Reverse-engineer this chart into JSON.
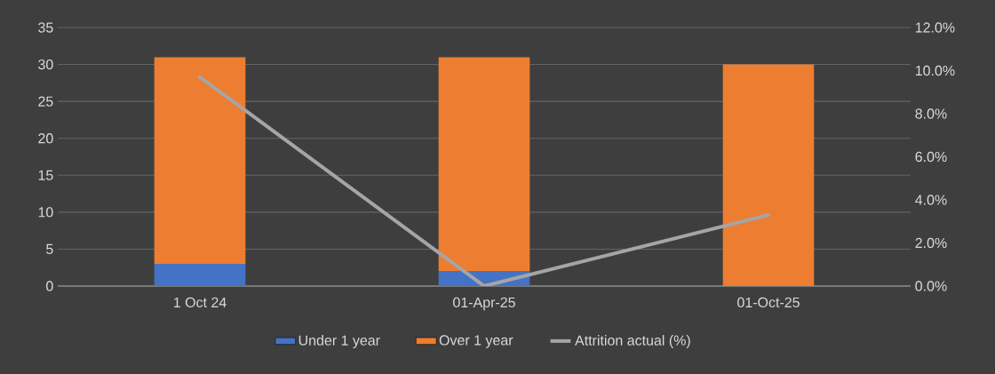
{
  "chart_data": {
    "type": "bar",
    "stacked": true,
    "categories": [
      "1 Oct 24",
      "01-Apr-25",
      "01-Oct-25"
    ],
    "series": [
      {
        "name": "Under 1 year",
        "color": "#4472c4",
        "values": [
          3,
          2,
          0
        ]
      },
      {
        "name": "Over 1 year",
        "color": "#ed7d31",
        "values": [
          28,
          29,
          30
        ]
      },
      {
        "name": "Attrition actual (%)",
        "type": "line",
        "axis": "y2",
        "color": "#a5a5a5",
        "values": [
          9.7,
          0,
          3.3
        ]
      }
    ],
    "ylim": [
      0,
      35
    ],
    "yticks": [
      0,
      5,
      10,
      15,
      20,
      25,
      30,
      35
    ],
    "y2lim": [
      0,
      12
    ],
    "y2ticks": [
      {
        "value": 0,
        "label": "0.0%"
      },
      {
        "value": 2,
        "label": "2.0%"
      },
      {
        "value": 4,
        "label": "4.0%"
      },
      {
        "value": 6,
        "label": "6.0%"
      },
      {
        "value": 8,
        "label": "8.0%"
      },
      {
        "value": 10,
        "label": "10.0%"
      },
      {
        "value": 12,
        "label": "12.0%"
      }
    ],
    "grid": "y",
    "legend": "bottom",
    "marker": "none",
    "line_style": "solid"
  }
}
